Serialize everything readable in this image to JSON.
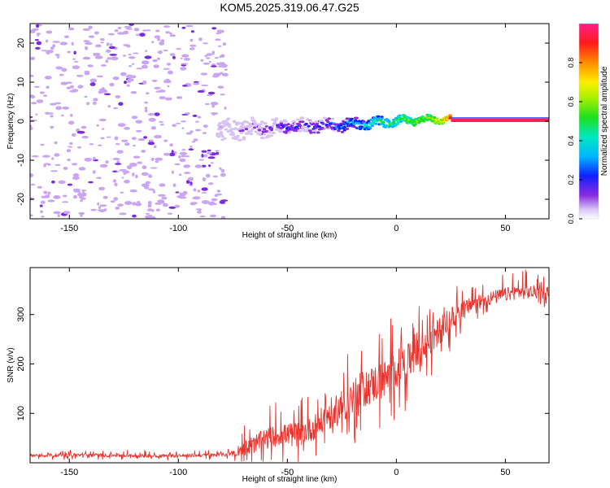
{
  "page_title": "KOM5.2025.319.06.47.G25",
  "colors": {
    "snr_line": "#e8322c",
    "scatter": "#c9a6f2",
    "scatter_dark": "#7a2ae0",
    "axes": "#000000"
  },
  "chart_data": [
    {
      "type": "heatmap",
      "title": "KOM5.2025.319.06.47.G25",
      "xlabel": "Height of straight line (km)",
      "ylabel": "Frequency (Hz)",
      "xlim": [
        -168,
        70
      ],
      "ylim": [
        -25,
        25
      ],
      "x_ticks": [
        -150,
        -100,
        -50,
        0,
        50
      ],
      "y_ticks": [
        -20,
        -10,
        0,
        10,
        20
      ],
      "x_tick_labels": [
        "-150",
        "-100",
        "-50",
        "0",
        "50"
      ],
      "y_tick_labels": [
        "-20",
        "-10",
        "0",
        "10",
        "20"
      ],
      "noise_region_x": [
        -168,
        -78
      ],
      "signal_trace": {
        "x": [
          -80,
          -70,
          -60,
          -50,
          -40,
          -30,
          -20,
          -10,
          0,
          10,
          20,
          25,
          70
        ],
        "freq": [
          -2.5,
          -2,
          -1.8,
          -1.5,
          -1.2,
          -1,
          -0.8,
          -0.5,
          0,
          0.3,
          0.5,
          0.5,
          0.5
        ],
        "amplitude": [
          0.08,
          0.2,
          0.28,
          0.33,
          0.35,
          0.38,
          0.45,
          0.55,
          0.62,
          0.7,
          0.75,
          0.98,
          0.98
        ]
      },
      "colorbar": {
        "label": "Normalized spectral amplitude",
        "range": [
          0,
          1
        ],
        "ticks": [
          0.0,
          0.2,
          0.4,
          0.6,
          0.8
        ],
        "tick_labels": [
          "0.0",
          "0.2",
          "0.4",
          "0.6",
          "0.8"
        ]
      }
    },
    {
      "type": "line",
      "xlabel": "Height of straight line (km)",
      "ylabel": "SNR (v/v)",
      "xlim": [
        -168,
        70
      ],
      "ylim": [
        0,
        395
      ],
      "x_ticks": [
        -150,
        -100,
        -50,
        0,
        50
      ],
      "y_ticks": [
        100,
        200,
        300
      ],
      "x_tick_labels": [
        "-150",
        "-100",
        "-50",
        "0",
        "50"
      ],
      "y_tick_labels": [
        "100",
        "200",
        "300"
      ],
      "series": [
        {
          "name": "SNR",
          "x": [
            -168,
            -150,
            -130,
            -110,
            -90,
            -80,
            -75,
            -70,
            -65,
            -60,
            -55,
            -50,
            -45,
            -40,
            -35,
            -30,
            -25,
            -20,
            -15,
            -10,
            -5,
            0,
            5,
            10,
            15,
            20,
            25,
            30,
            35,
            40,
            45,
            50,
            55,
            60,
            70
          ],
          "y": [
            15,
            16,
            15,
            14,
            15,
            16,
            20,
            30,
            40,
            48,
            55,
            58,
            62,
            66,
            80,
            100,
            115,
            130,
            150,
            160,
            170,
            190,
            205,
            215,
            240,
            270,
            290,
            310,
            320,
            330,
            335,
            340,
            345,
            345,
            345
          ],
          "noise_amplitude": [
            5,
            5,
            5,
            5,
            5,
            5,
            10,
            20,
            25,
            30,
            30,
            30,
            32,
            35,
            40,
            45,
            50,
            55,
            55,
            55,
            55,
            55,
            50,
            50,
            45,
            40,
            35,
            25,
            22,
            20,
            20,
            20,
            20,
            20,
            20
          ]
        }
      ]
    }
  ]
}
